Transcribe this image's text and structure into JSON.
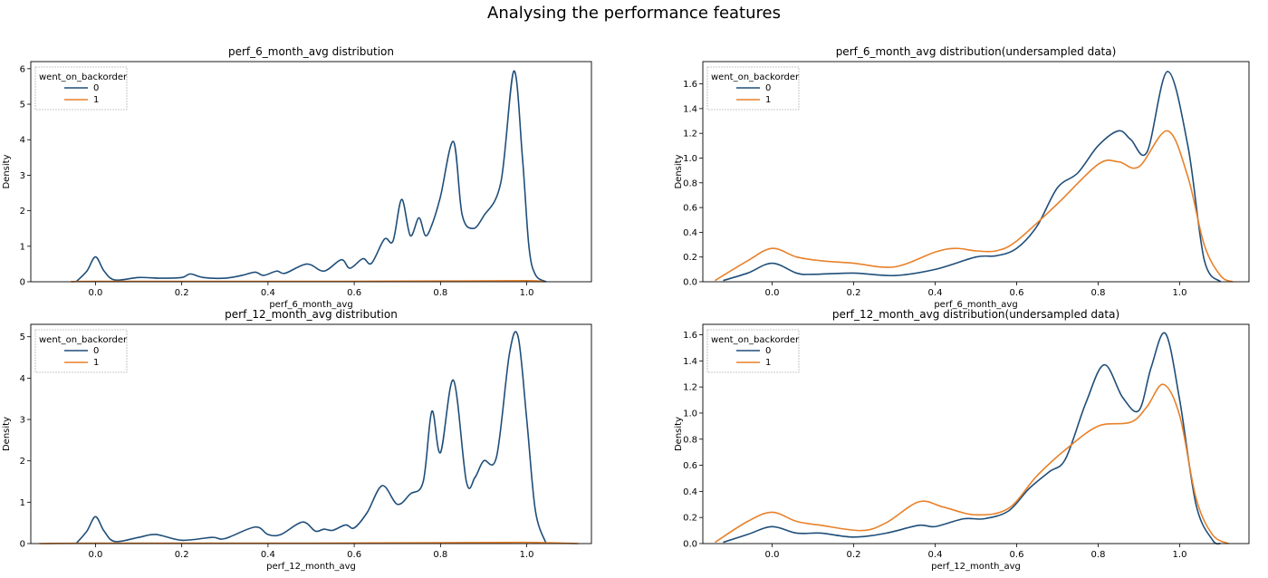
{
  "figure": {
    "title": "Analysing the performance features"
  },
  "chart_data": [
    {
      "type": "line",
      "kind": "kde",
      "title": "perf_6_month_avg distribution",
      "xlabel": "perf_6_month_avg",
      "ylabel": "Density",
      "xlim": [
        -0.15,
        1.15
      ],
      "ylim": [
        0,
        6.2
      ],
      "xticks": [
        0.0,
        0.2,
        0.4,
        0.6,
        0.8,
        1.0
      ],
      "yticks": [
        0,
        1,
        2,
        3,
        4,
        5,
        6
      ],
      "xtick_labels": [
        "0.0",
        "0.2",
        "0.4",
        "0.6",
        "0.8",
        "1.0"
      ],
      "ytick_labels": [
        "0",
        "1",
        "2",
        "3",
        "4",
        "5",
        "6"
      ],
      "grid": false,
      "legend": {
        "title": "went_on_backorder",
        "placement": "top-left",
        "entries": [
          "0",
          "1"
        ]
      },
      "series": [
        {
          "name": "0",
          "color": "#1f4e79",
          "x": [
            -0.045,
            -0.02,
            0.0,
            0.02,
            0.045,
            0.1,
            0.15,
            0.2,
            0.22,
            0.25,
            0.3,
            0.34,
            0.37,
            0.39,
            0.42,
            0.44,
            0.49,
            0.53,
            0.57,
            0.59,
            0.62,
            0.64,
            0.67,
            0.69,
            0.71,
            0.73,
            0.75,
            0.765,
            0.78,
            0.8,
            0.83,
            0.85,
            0.875,
            0.9,
            0.94,
            0.97,
            0.99,
            1.005,
            1.02,
            1.045
          ],
          "y": [
            0.0,
            0.3,
            0.7,
            0.3,
            0.05,
            0.12,
            0.1,
            0.12,
            0.22,
            0.12,
            0.1,
            0.18,
            0.27,
            0.18,
            0.3,
            0.24,
            0.5,
            0.3,
            0.62,
            0.38,
            0.65,
            0.52,
            1.2,
            1.15,
            2.32,
            1.3,
            1.8,
            1.3,
            1.6,
            2.4,
            3.95,
            1.9,
            1.5,
            1.85,
            2.8,
            5.93,
            3.5,
            1.0,
            0.2,
            0.0
          ]
        },
        {
          "name": "1",
          "color": "#e8812a",
          "x": [
            -0.05,
            0.0,
            0.5,
            0.8,
            1.0,
            1.04
          ],
          "y": [
            0.0,
            0.01,
            0.01,
            0.02,
            0.03,
            0.0
          ]
        }
      ]
    },
    {
      "type": "line",
      "kind": "kde",
      "title": "perf_6_month_avg distribution(undersampled data)",
      "xlabel": "perf_6_month_avg",
      "ylabel": "Density",
      "xlim": [
        -0.17,
        1.17
      ],
      "ylim": [
        0,
        1.78
      ],
      "xticks": [
        0.0,
        0.2,
        0.4,
        0.6,
        0.8,
        1.0
      ],
      "yticks": [
        0.0,
        0.2,
        0.4,
        0.6,
        0.8,
        1.0,
        1.2,
        1.4,
        1.6
      ],
      "xtick_labels": [
        "0.0",
        "0.2",
        "0.4",
        "0.6",
        "0.8",
        "1.0"
      ],
      "ytick_labels": [
        "0.0",
        "0.2",
        "0.4",
        "0.6",
        "0.8",
        "1.0",
        "1.2",
        "1.4",
        "1.6"
      ],
      "grid": false,
      "legend": {
        "title": "went_on_backorder",
        "placement": "top-left",
        "entries": [
          "0",
          "1"
        ]
      },
      "series": [
        {
          "name": "0",
          "color": "#1f4e79",
          "x": [
            -0.12,
            -0.06,
            0.0,
            0.06,
            0.1,
            0.2,
            0.3,
            0.4,
            0.5,
            0.55,
            0.6,
            0.65,
            0.7,
            0.75,
            0.8,
            0.85,
            0.88,
            0.92,
            0.97,
            1.02,
            1.06,
            1.1
          ],
          "y": [
            0.01,
            0.07,
            0.15,
            0.07,
            0.06,
            0.07,
            0.05,
            0.1,
            0.2,
            0.21,
            0.27,
            0.45,
            0.76,
            0.88,
            1.1,
            1.22,
            1.15,
            1.05,
            1.7,
            1.1,
            0.18,
            0.0
          ]
        },
        {
          "name": "1",
          "color": "#e8812a",
          "x": [
            -0.14,
            -0.06,
            0.0,
            0.06,
            0.12,
            0.2,
            0.3,
            0.4,
            0.45,
            0.5,
            0.55,
            0.6,
            0.7,
            0.8,
            0.85,
            0.9,
            0.97,
            1.02,
            1.06,
            1.1,
            1.13
          ],
          "y": [
            0.01,
            0.17,
            0.27,
            0.2,
            0.17,
            0.15,
            0.12,
            0.24,
            0.27,
            0.25,
            0.25,
            0.33,
            0.63,
            0.95,
            0.97,
            0.93,
            1.22,
            0.85,
            0.3,
            0.05,
            0.0
          ]
        }
      ]
    },
    {
      "type": "line",
      "kind": "kde",
      "title": "perf_12_month_avg distribution",
      "xlabel": "perf_12_month_avg",
      "ylabel": "Density",
      "xlim": [
        -0.15,
        1.15
      ],
      "ylim": [
        0,
        5.3
      ],
      "xticks": [
        0.0,
        0.2,
        0.4,
        0.6,
        0.8,
        1.0
      ],
      "yticks": [
        0,
        1,
        2,
        3,
        4,
        5
      ],
      "xtick_labels": [
        "0.0",
        "0.2",
        "0.4",
        "0.6",
        "0.8",
        "1.0"
      ],
      "ytick_labels": [
        "0",
        "1",
        "2",
        "3",
        "4",
        "5"
      ],
      "grid": false,
      "legend": {
        "title": "went_on_backorder",
        "placement": "top-left",
        "entries": [
          "0",
          "1"
        ]
      },
      "series": [
        {
          "name": "0",
          "color": "#1f4e79",
          "x": [
            -0.045,
            -0.02,
            0.0,
            0.02,
            0.045,
            0.1,
            0.14,
            0.2,
            0.27,
            0.3,
            0.37,
            0.4,
            0.43,
            0.48,
            0.51,
            0.53,
            0.55,
            0.58,
            0.6,
            0.63,
            0.665,
            0.7,
            0.73,
            0.76,
            0.78,
            0.8,
            0.83,
            0.86,
            0.88,
            0.9,
            0.93,
            0.96,
            0.98,
            1.0,
            1.02,
            1.045
          ],
          "y": [
            0.0,
            0.3,
            0.65,
            0.3,
            0.05,
            0.15,
            0.22,
            0.08,
            0.15,
            0.12,
            0.4,
            0.22,
            0.22,
            0.52,
            0.3,
            0.35,
            0.32,
            0.45,
            0.38,
            0.75,
            1.4,
            0.95,
            1.2,
            1.5,
            3.2,
            2.2,
            3.95,
            1.5,
            1.6,
            2.0,
            2.1,
            4.6,
            5.0,
            3.0,
            0.8,
            0.0
          ]
        },
        {
          "name": "1",
          "color": "#e8812a",
          "x": [
            -0.13,
            0.0,
            0.5,
            0.8,
            1.0,
            1.12
          ],
          "y": [
            0.0,
            0.01,
            0.01,
            0.02,
            0.03,
            0.0
          ]
        }
      ]
    },
    {
      "type": "line",
      "kind": "kde",
      "title": "perf_12_month_avg distribution(undersampled data)",
      "xlabel": "perf_12_month_avg",
      "ylabel": "Density",
      "xlim": [
        -0.17,
        1.17
      ],
      "ylim": [
        0,
        1.68
      ],
      "xticks": [
        0.0,
        0.2,
        0.4,
        0.6,
        0.8,
        1.0
      ],
      "yticks": [
        0.0,
        0.2,
        0.4,
        0.6,
        0.8,
        1.0,
        1.2,
        1.4,
        1.6
      ],
      "xtick_labels": [
        "0.0",
        "0.2",
        "0.4",
        "0.6",
        "0.8",
        "1.0"
      ],
      "ytick_labels": [
        "0.0",
        "0.2",
        "0.4",
        "0.6",
        "0.8",
        "1.0",
        "1.2",
        "1.4",
        "1.6"
      ],
      "grid": false,
      "legend": {
        "title": "went_on_backorder",
        "placement": "top-left",
        "entries": [
          "0",
          "1"
        ]
      },
      "series": [
        {
          "name": "0",
          "color": "#1f4e79",
          "x": [
            -0.12,
            -0.06,
            0.0,
            0.06,
            0.12,
            0.2,
            0.28,
            0.36,
            0.4,
            0.47,
            0.52,
            0.58,
            0.63,
            0.68,
            0.72,
            0.77,
            0.815,
            0.86,
            0.9,
            0.93,
            0.965,
            1.0,
            1.04,
            1.08,
            1.1
          ],
          "y": [
            0.01,
            0.07,
            0.13,
            0.08,
            0.08,
            0.05,
            0.08,
            0.14,
            0.13,
            0.19,
            0.19,
            0.25,
            0.42,
            0.55,
            0.65,
            1.08,
            1.37,
            1.12,
            1.02,
            1.35,
            1.61,
            1.1,
            0.3,
            0.03,
            0.0
          ]
        },
        {
          "name": "1",
          "color": "#e8812a",
          "x": [
            -0.14,
            -0.06,
            0.0,
            0.06,
            0.12,
            0.22,
            0.28,
            0.36,
            0.42,
            0.5,
            0.58,
            0.65,
            0.72,
            0.8,
            0.88,
            0.92,
            0.96,
            1.0,
            1.04,
            1.08,
            1.12
          ],
          "y": [
            0.01,
            0.17,
            0.24,
            0.17,
            0.14,
            0.1,
            0.16,
            0.32,
            0.28,
            0.22,
            0.27,
            0.52,
            0.72,
            0.9,
            0.93,
            1.05,
            1.22,
            0.98,
            0.35,
            0.07,
            0.0
          ]
        }
      ]
    }
  ]
}
